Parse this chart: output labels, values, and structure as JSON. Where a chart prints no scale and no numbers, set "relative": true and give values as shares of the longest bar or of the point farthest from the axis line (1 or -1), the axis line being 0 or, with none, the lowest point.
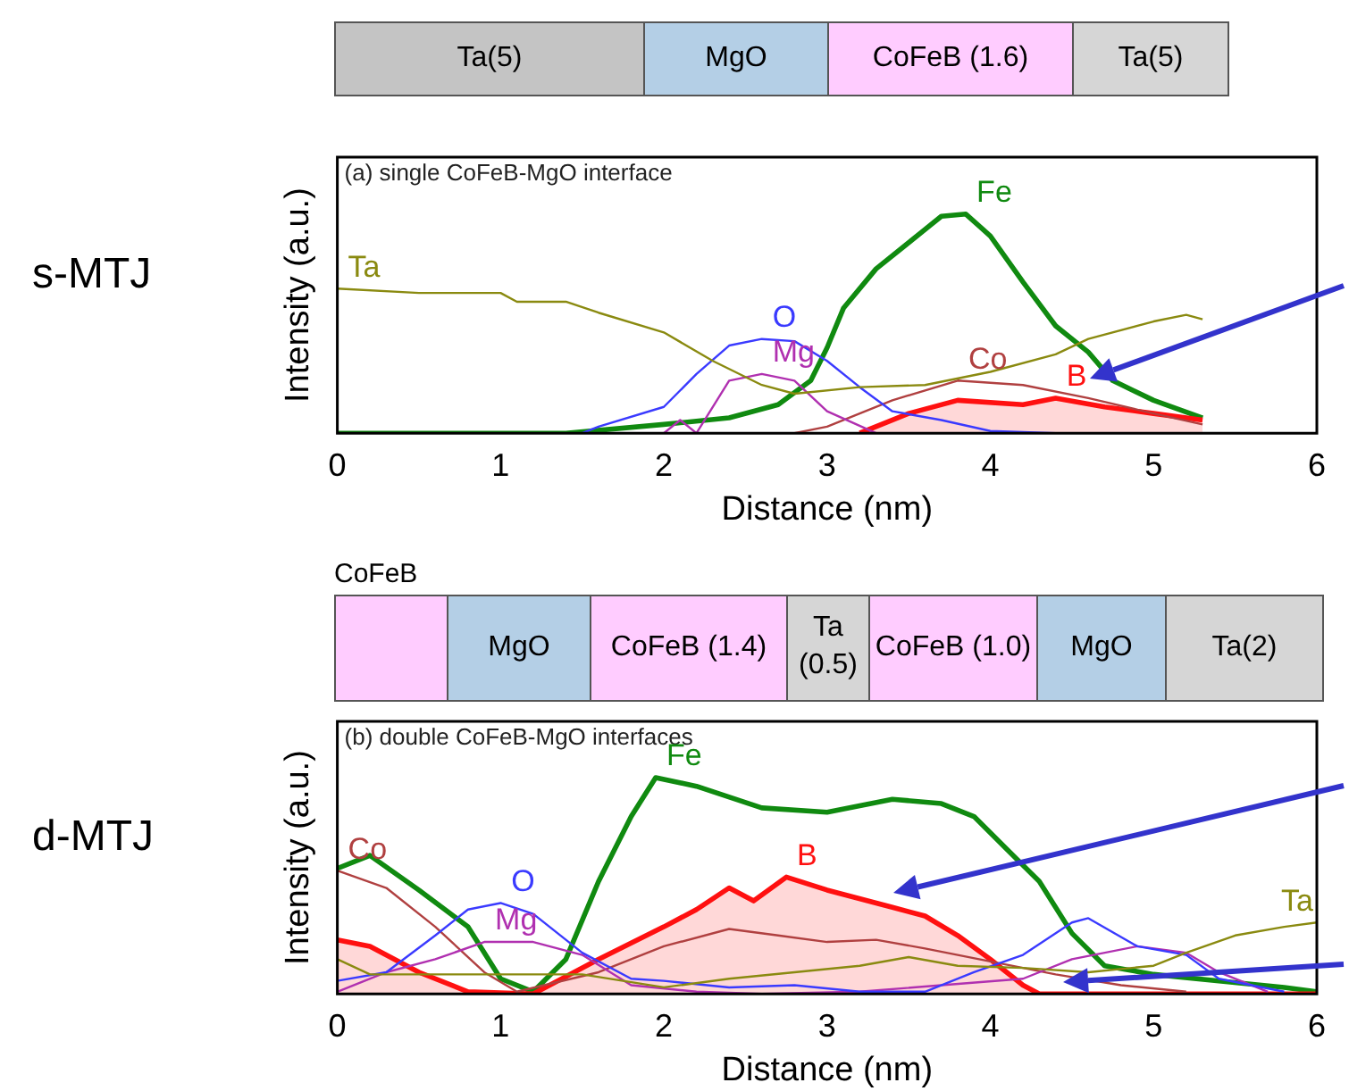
{
  "chart_data": [
    {
      "type": "line",
      "title": "(a) single CoFeB-MgO interface",
      "xlabel": "Distance (nm)",
      "ylabel": "Intensity (a.u.)",
      "relative": true,
      "xlim": [
        0,
        6
      ],
      "xticks": [
        0,
        1,
        2,
        3,
        4,
        5,
        6
      ],
      "annotations": [
        "s-MTJ",
        "Ta(5)",
        "MgO",
        "CoFeB (1.6)",
        "Ta(5)"
      ],
      "series": [
        {
          "name": "Ta",
          "color": "#8a8a10",
          "x": [
            0,
            0.5,
            1.0,
            1.1,
            1.4,
            1.6,
            2.0,
            2.3,
            2.6,
            2.8,
            3.2,
            3.6,
            4.0,
            4.4,
            4.6,
            5.0,
            5.2,
            5.3
          ],
          "values": [
            0.66,
            0.64,
            0.64,
            0.6,
            0.6,
            0.55,
            0.46,
            0.33,
            0.22,
            0.18,
            0.21,
            0.22,
            0.28,
            0.36,
            0.43,
            0.51,
            0.54,
            0.52
          ]
        },
        {
          "name": "O",
          "color": "#3a3aff",
          "x": [
            1.5,
            1.6,
            2.0,
            2.2,
            2.4,
            2.6,
            2.8,
            3.0,
            3.2,
            3.4,
            3.7,
            4.0,
            4.4
          ],
          "values": [
            0,
            0.03,
            0.12,
            0.27,
            0.4,
            0.43,
            0.42,
            0.33,
            0.21,
            0.1,
            0.06,
            0.01,
            0
          ]
        },
        {
          "name": "Mg",
          "color": "#b030b0",
          "x": [
            2.0,
            2.1,
            2.2,
            2.4,
            2.6,
            2.8,
            3.0,
            3.3
          ],
          "values": [
            0,
            0.06,
            0,
            0.24,
            0.27,
            0.24,
            0.1,
            0
          ]
        },
        {
          "name": "Co",
          "color": "#b04040",
          "x": [
            2.8,
            3.0,
            3.4,
            3.8,
            4.2,
            4.6,
            5.0,
            5.3
          ],
          "values": [
            0,
            0.03,
            0.15,
            0.24,
            0.22,
            0.16,
            0.09,
            0.04
          ]
        },
        {
          "name": "B",
          "color": "#ff1010",
          "type": "area",
          "x": [
            3.2,
            3.5,
            3.8,
            4.2,
            4.4,
            4.7,
            5.0,
            5.3
          ],
          "values": [
            0,
            0.09,
            0.15,
            0.13,
            0.16,
            0.12,
            0.09,
            0.06
          ]
        },
        {
          "name": "Fe",
          "color": "#108a10",
          "x": [
            0,
            1.4,
            2.0,
            2.4,
            2.7,
            2.9,
            3.0,
            3.1,
            3.3,
            3.5,
            3.7,
            3.85,
            4.0,
            4.2,
            4.4,
            4.6,
            4.75,
            5.0,
            5.3
          ],
          "values": [
            0,
            0,
            0.04,
            0.07,
            0.13,
            0.24,
            0.39,
            0.57,
            0.75,
            0.87,
            0.99,
            1,
            0.9,
            0.69,
            0.49,
            0.37,
            0.24,
            0.15,
            0.07
          ]
        }
      ]
    },
    {
      "type": "line",
      "title": "(b) double CoFeB-MgO interfaces",
      "xlabel": "Distance (nm)",
      "ylabel": "Intensity (a.u.)",
      "relative": true,
      "xlim": [
        0,
        6
      ],
      "xticks": [
        0,
        1,
        2,
        3,
        4,
        5,
        6
      ],
      "annotations": [
        "d-MTJ",
        "CoFeB",
        "MgO",
        "CoFeB (1.4)",
        "Ta (0.5)",
        "CoFeB (1.0)",
        "MgO",
        "Ta(2)"
      ],
      "series": [
        {
          "name": "Ta",
          "color": "#8a8a10",
          "x": [
            0,
            0.2,
            0.5,
            1.0,
            1.5,
            2.0,
            2.4,
            2.8,
            3.2,
            3.5,
            3.8,
            4.2,
            4.6,
            5.0,
            5.2,
            5.5,
            5.8,
            6.0
          ],
          "values": [
            0.16,
            0.09,
            0.09,
            0.09,
            0.09,
            0.03,
            0.07,
            0.1,
            0.13,
            0.17,
            0.13,
            0.12,
            0.1,
            0.13,
            0.19,
            0.27,
            0.31,
            0.33
          ]
        },
        {
          "name": "O",
          "color": "#3a3aff",
          "x": [
            0,
            0.3,
            0.6,
            0.8,
            1.0,
            1.2,
            1.5,
            1.8,
            2.0,
            2.4,
            2.8,
            3.2,
            3.6,
            3.9,
            4.2,
            4.5,
            4.6,
            4.9,
            5.2,
            5.4,
            5.8
          ],
          "values": [
            0.06,
            0.1,
            0.27,
            0.39,
            0.42,
            0.37,
            0.19,
            0.07,
            0.06,
            0.03,
            0.04,
            0.01,
            0.01,
            0.1,
            0.18,
            0.33,
            0.35,
            0.22,
            0.18,
            0.07,
            0.01
          ]
        },
        {
          "name": "Mg",
          "color": "#b030b0",
          "x": [
            0,
            0.3,
            0.6,
            0.9,
            1.2,
            1.5,
            1.8,
            2.2,
            2.6,
            3.2,
            4.2,
            4.5,
            4.9,
            5.2,
            5.4,
            5.7
          ],
          "values": [
            0.01,
            0.1,
            0.16,
            0.24,
            0.24,
            0.18,
            0.04,
            0.01,
            0,
            0.01,
            0.07,
            0.16,
            0.22,
            0.19,
            0.1,
            0.01
          ]
        },
        {
          "name": "Co",
          "color": "#b04040",
          "x": [
            0,
            0.3,
            0.6,
            0.9,
            1.1,
            1.6,
            2.0,
            2.4,
            2.7,
            3.0,
            3.3,
            3.6,
            4.0,
            4.4,
            4.8,
            5.2
          ],
          "values": [
            0.57,
            0.49,
            0.31,
            0.1,
            0.01,
            0.1,
            0.22,
            0.3,
            0.27,
            0.24,
            0.25,
            0.21,
            0.15,
            0.09,
            0.04,
            0.01
          ]
        },
        {
          "name": "B",
          "color": "#ff1010",
          "type": "area",
          "x": [
            0,
            0.2,
            0.5,
            0.8,
            1.2,
            1.6,
            2.0,
            2.2,
            2.4,
            2.55,
            2.75,
            3.0,
            3.4,
            3.6,
            3.8,
            4.0,
            4.2,
            4.3,
            6.0
          ],
          "values": [
            0.25,
            0.22,
            0.1,
            0.01,
            0,
            0.16,
            0.31,
            0.39,
            0.49,
            0.43,
            0.54,
            0.48,
            0.4,
            0.36,
            0.27,
            0.16,
            0.04,
            0,
            0
          ]
        },
        {
          "name": "Fe",
          "color": "#108a10",
          "x": [
            0,
            0.2,
            0.5,
            0.8,
            1.0,
            1.2,
            1.4,
            1.6,
            1.8,
            1.95,
            2.2,
            2.6,
            3.0,
            3.4,
            3.7,
            3.9,
            4.1,
            4.3,
            4.5,
            4.7,
            5.0,
            5.4,
            5.8,
            6.0
          ],
          "values": [
            0.58,
            0.64,
            0.48,
            0.31,
            0.07,
            0.01,
            0.16,
            0.52,
            0.82,
            1,
            0.96,
            0.86,
            0.84,
            0.9,
            0.88,
            0.82,
            0.67,
            0.52,
            0.28,
            0.13,
            0.09,
            0.06,
            0.03,
            0.01
          ]
        }
      ]
    }
  ]
}
